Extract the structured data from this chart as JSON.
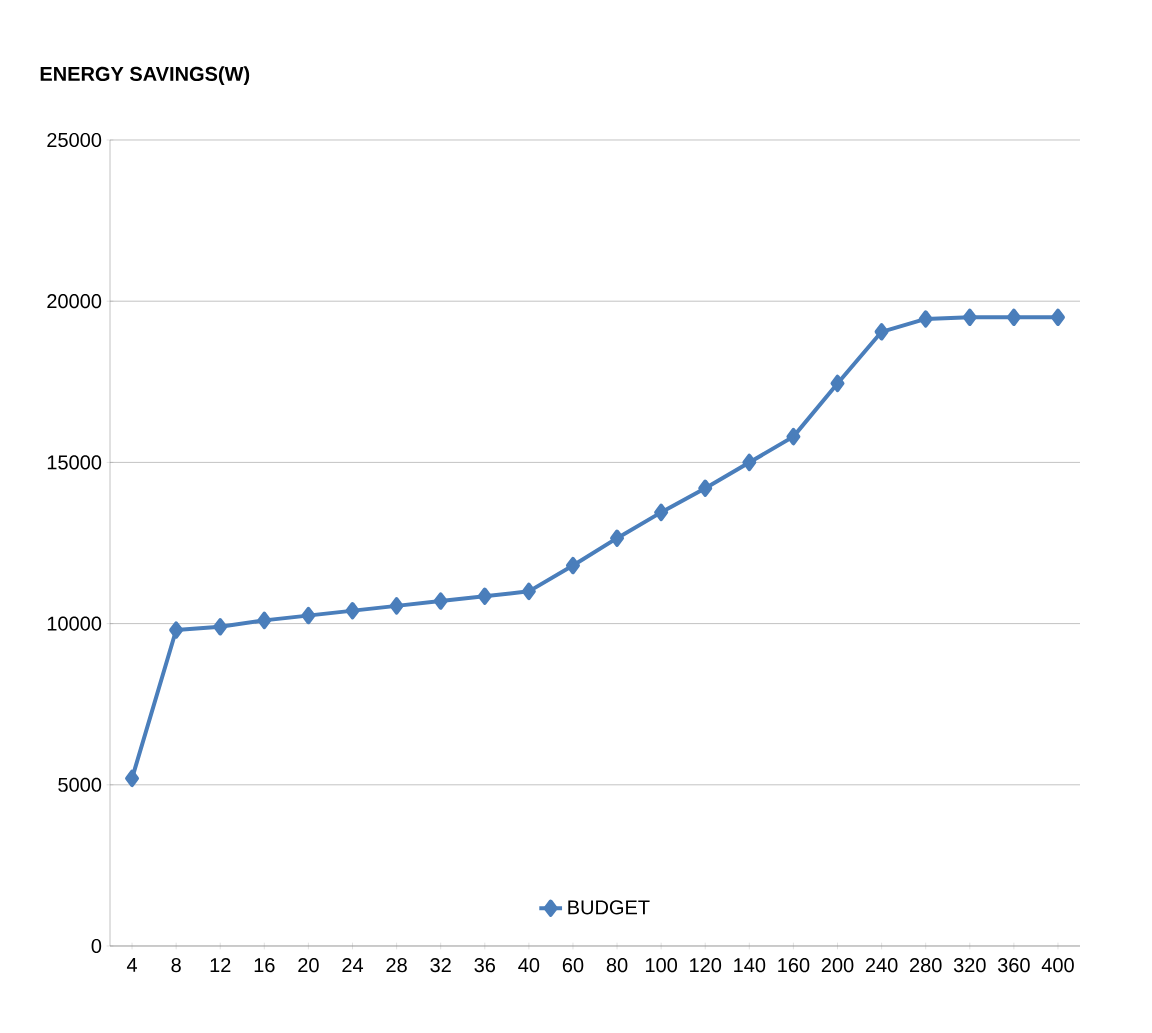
{
  "chart_data": {
    "type": "line",
    "title": "ENERGY SAVINGS(W)",
    "categories": [
      "4",
      "8",
      "12",
      "16",
      "20",
      "24",
      "28",
      "32",
      "36",
      "40",
      "60",
      "80",
      "100",
      "120",
      "140",
      "160",
      "200",
      "240",
      "280",
      "320",
      "360",
      "400"
    ],
    "series": [
      {
        "name": "BUDGET",
        "color": "#4a7ebb",
        "values": [
          5200,
          9800,
          9900,
          10100,
          10250,
          10400,
          10550,
          10700,
          10850,
          11000,
          11800,
          12650,
          13450,
          14200,
          15000,
          15800,
          17450,
          19050,
          19450,
          19500,
          19500,
          19500
        ]
      }
    ],
    "ylim": [
      0,
      25000
    ],
    "yticks": [
      0,
      5000,
      10000,
      15000,
      20000,
      25000
    ],
    "grid": "y",
    "legend": "bottom",
    "marker": "diamond",
    "line_style": "solid"
  }
}
